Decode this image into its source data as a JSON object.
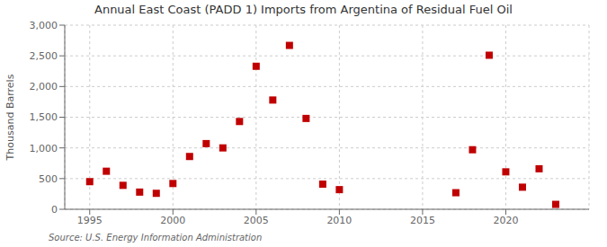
{
  "chart_data": {
    "type": "scatter",
    "title": "Annual East Coast (PADD 1) Imports from Argentina of Residual Fuel Oil",
    "y_label": "Thousand Barrels",
    "annotations": [
      "Source: U.S. Energy Information Administration"
    ],
    "x": [
      1995,
      1996,
      1997,
      1998,
      1999,
      2000,
      2001,
      2002,
      2003,
      2004,
      2005,
      2006,
      2007,
      2008,
      2009,
      2010,
      2017,
      2018,
      2019,
      2020,
      2021,
      2022,
      2023
    ],
    "values": [
      450,
      620,
      390,
      280,
      260,
      420,
      860,
      1070,
      1000,
      1430,
      2330,
      1780,
      2670,
      1480,
      410,
      320,
      270,
      970,
      2510,
      610,
      360,
      660,
      80
    ],
    "color": "#c00000",
    "marker": "square",
    "xlim": [
      1993.5,
      2025
    ],
    "xticks": [
      1995,
      2000,
      2005,
      2010,
      2015,
      2020
    ],
    "ylim": [
      0,
      3000
    ],
    "yticks": [
      0,
      500,
      {
        "value": 1000,
        "label": "1,000"
      },
      {
        "value": 1500,
        "label": "1,500"
      },
      {
        "value": 2000,
        "label": "2,000"
      },
      {
        "value": 2500,
        "label": "2,500"
      },
      {
        "value": 3000,
        "label": "3,000"
      }
    ],
    "grid": true
  }
}
